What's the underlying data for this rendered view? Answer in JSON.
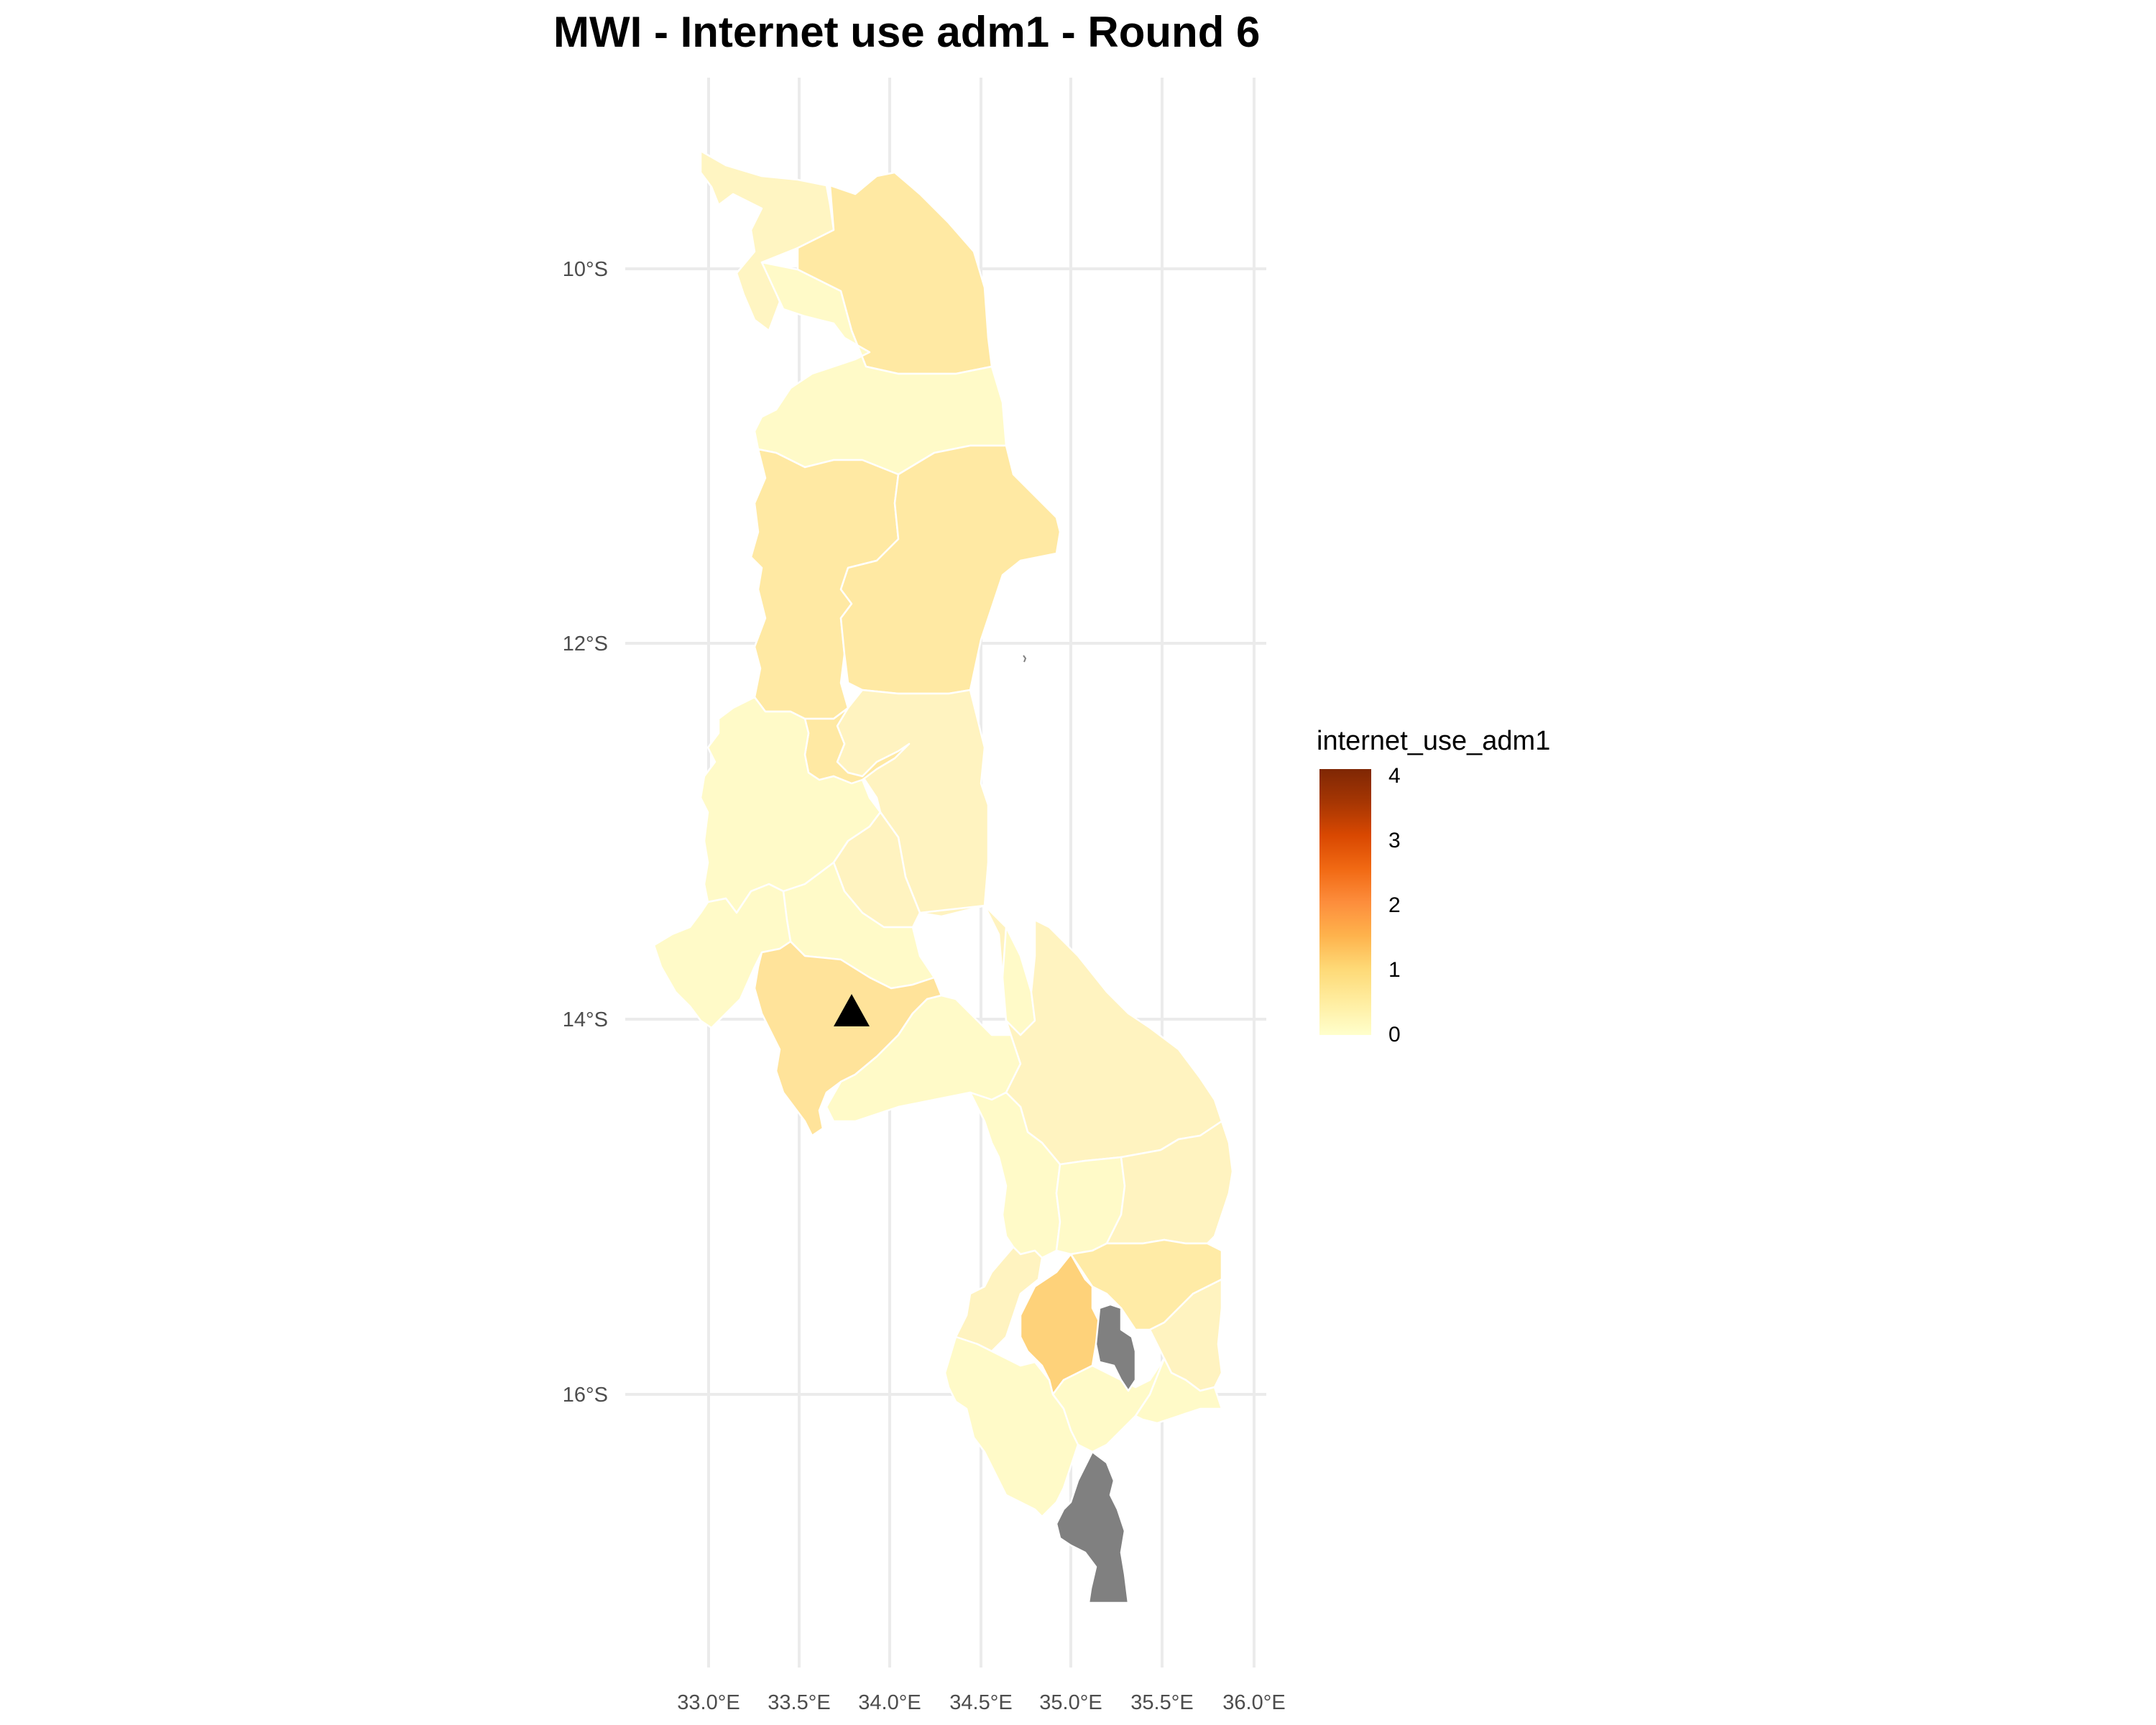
{
  "title": "MWI - Internet use adm1 - Round 6",
  "axes": {
    "x_ticks": [
      "33.0°E",
      "33.5°E",
      "34.0°E",
      "34.5°E",
      "35.0°E",
      "35.5°E",
      "36.0°E"
    ],
    "y_ticks": [
      "10°S",
      "12°S",
      "14°S",
      "16°S"
    ]
  },
  "legend": {
    "title": "internet_use_adm1",
    "ticks": [
      "4",
      "3",
      "2",
      "1",
      "0"
    ],
    "range": [
      0,
      4
    ],
    "low_color": "#ffffcc",
    "high_color": "#7f2704"
  },
  "colors": {
    "missing": "#808080",
    "border": "#ffffff",
    "grid": "#ebebeb"
  },
  "marker": {
    "shape": "triangle",
    "color": "#000000"
  }
}
